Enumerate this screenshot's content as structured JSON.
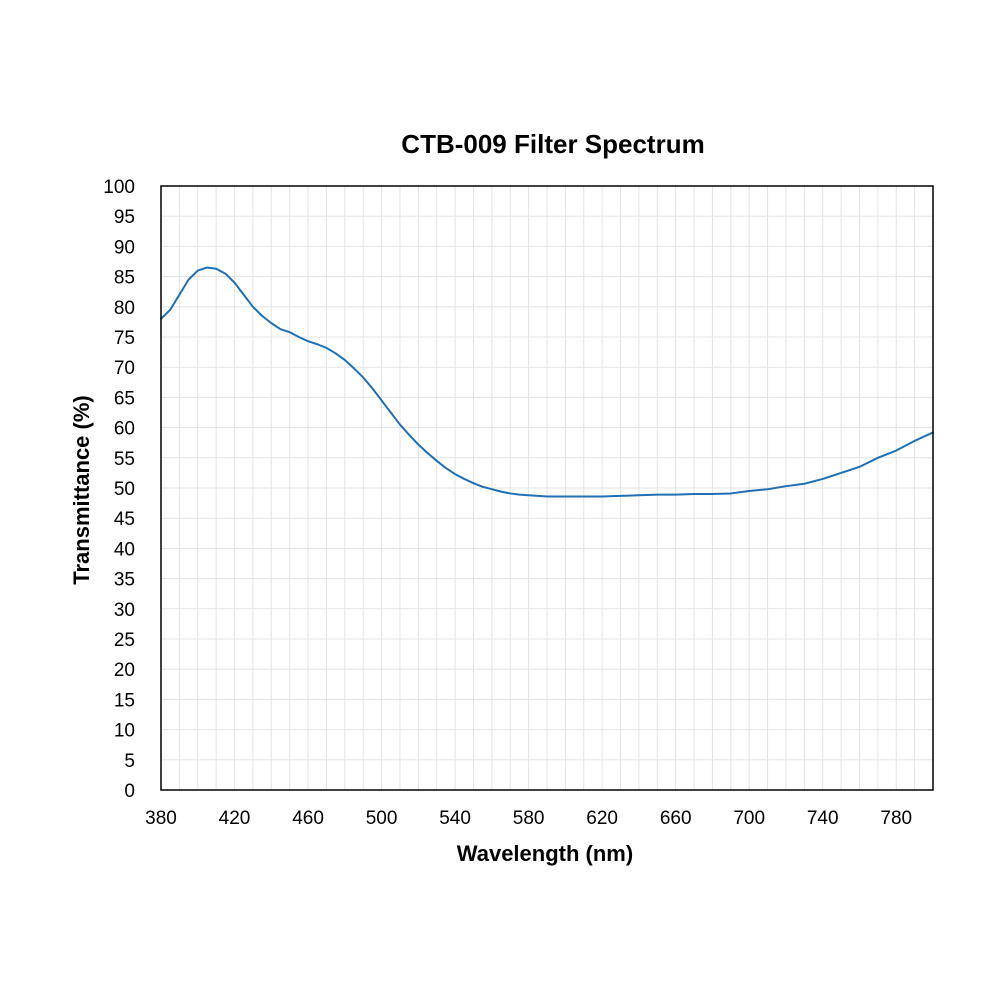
{
  "chart_data": {
    "type": "line",
    "title": "CTB-009 Filter Spectrum",
    "xlabel": "Wavelength (nm)",
    "ylabel": "Transmittance (%)",
    "xlim": [
      380,
      800
    ],
    "ylim": [
      0,
      100
    ],
    "x_ticks": [
      380,
      420,
      460,
      500,
      540,
      580,
      620,
      660,
      700,
      740,
      780
    ],
    "x_tick_labels": [
      "380",
      "420",
      "460",
      "500",
      "540",
      "580",
      "620",
      "660",
      "700",
      "740",
      "780"
    ],
    "y_ticks": [
      0,
      5,
      10,
      15,
      20,
      25,
      30,
      35,
      40,
      45,
      50,
      55,
      60,
      65,
      70,
      75,
      80,
      85,
      90,
      95,
      100
    ],
    "y_tick_labels": [
      "0",
      "5",
      "10",
      "15",
      "20",
      "25",
      "30",
      "35",
      "40",
      "45",
      "50",
      "55",
      "60",
      "65",
      "70",
      "75",
      "80",
      "85",
      "90",
      "95",
      "100"
    ],
    "grid": true,
    "grid_x_step": 10,
    "grid_y_step": 5,
    "legend": "none",
    "series": [
      {
        "color": "#1f6fb2",
        "x": [
          380,
          385,
          390,
          395,
          400,
          405,
          410,
          415,
          420,
          425,
          430,
          435,
          440,
          445,
          450,
          455,
          460,
          465,
          470,
          475,
          480,
          485,
          490,
          495,
          500,
          505,
          510,
          515,
          520,
          525,
          530,
          535,
          540,
          545,
          550,
          555,
          560,
          565,
          570,
          575,
          580,
          585,
          590,
          595,
          600,
          610,
          620,
          630,
          640,
          650,
          660,
          670,
          680,
          690,
          700,
          710,
          720,
          730,
          740,
          750,
          760,
          770,
          780,
          790,
          800
        ],
        "y": [
          78,
          79.5,
          82,
          84.5,
          86,
          86.5,
          86.3,
          85.5,
          84,
          82,
          80,
          78.5,
          77.3,
          76.3,
          75.8,
          75,
          74.3,
          73.8,
          73.2,
          72.3,
          71.2,
          69.8,
          68.3,
          66.5,
          64.5,
          62.5,
          60.5,
          58.8,
          57.2,
          55.8,
          54.5,
          53.3,
          52.3,
          51.5,
          50.8,
          50.2,
          49.8,
          49.4,
          49.1,
          48.9,
          48.8,
          48.7,
          48.6,
          48.6,
          48.6,
          48.6,
          48.6,
          48.7,
          48.8,
          48.9,
          48.9,
          49,
          49,
          49.1,
          49.5,
          49.8,
          50.3,
          50.7,
          51.5,
          52.5,
          53.5,
          55,
          56.2,
          57.8,
          59.2
        ]
      }
    ]
  }
}
